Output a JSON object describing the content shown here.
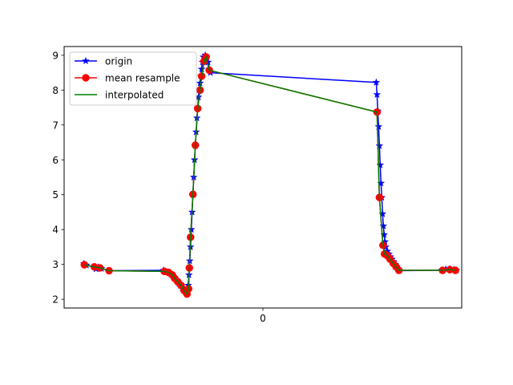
{
  "chart_data": {
    "type": "line",
    "title": "",
    "xlabel": "",
    "ylabel": "",
    "xlim": [
      0,
      100
    ],
    "ylim": [
      1.75,
      9.25
    ],
    "x_ticks": [
      {
        "value": 50,
        "label": "0"
      }
    ],
    "y_ticks": [
      2,
      3,
      4,
      5,
      6,
      7,
      8,
      9
    ],
    "grid": false,
    "legend_position": "upper-left",
    "series": [
      {
        "name": "origin",
        "color": "#0000ff",
        "marker": "star",
        "points": [
          [
            5.0,
            3.02
          ],
          [
            5.6,
            2.98
          ],
          [
            7.5,
            2.93
          ],
          [
            8.0,
            2.87
          ],
          [
            8.6,
            2.92
          ],
          [
            9.4,
            2.88
          ],
          [
            11.3,
            2.82
          ],
          [
            25.0,
            2.83
          ],
          [
            25.5,
            2.8
          ],
          [
            26.0,
            2.78
          ],
          [
            26.4,
            2.76
          ],
          [
            26.9,
            2.72
          ],
          [
            27.3,
            2.68
          ],
          [
            27.7,
            2.63
          ],
          [
            28.1,
            2.57
          ],
          [
            28.5,
            2.51
          ],
          [
            28.9,
            2.45
          ],
          [
            29.3,
            2.39
          ],
          [
            29.7,
            2.33
          ],
          [
            30.1,
            2.27
          ],
          [
            30.5,
            2.21
          ],
          [
            30.9,
            2.16
          ],
          [
            31.2,
            2.4
          ],
          [
            31.4,
            2.7
          ],
          [
            31.6,
            3.1
          ],
          [
            31.8,
            3.5
          ],
          [
            32.0,
            4.0
          ],
          [
            32.2,
            4.5
          ],
          [
            32.4,
            5.0
          ],
          [
            32.6,
            5.5
          ],
          [
            32.8,
            6.0
          ],
          [
            33.0,
            6.4
          ],
          [
            33.2,
            6.8
          ],
          [
            33.4,
            7.2
          ],
          [
            33.6,
            7.5
          ],
          [
            33.8,
            7.8
          ],
          [
            34.0,
            8.0
          ],
          [
            34.2,
            8.2
          ],
          [
            34.4,
            8.4
          ],
          [
            34.6,
            8.6
          ],
          [
            34.8,
            8.8
          ],
          [
            35.0,
            8.95
          ],
          [
            35.5,
            9.0
          ],
          [
            35.9,
            8.95
          ],
          [
            36.2,
            8.8
          ],
          [
            36.5,
            8.6
          ],
          [
            36.8,
            8.5
          ],
          [
            78.5,
            8.22
          ],
          [
            78.7,
            7.87
          ],
          [
            78.9,
            7.4
          ],
          [
            79.1,
            6.95
          ],
          [
            79.3,
            6.4
          ],
          [
            79.5,
            5.85
          ],
          [
            79.7,
            5.33
          ],
          [
            79.9,
            4.92
          ],
          [
            80.1,
            4.45
          ],
          [
            80.3,
            4.1
          ],
          [
            80.5,
            3.85
          ],
          [
            80.7,
            3.65
          ],
          [
            80.9,
            3.5
          ],
          [
            81.3,
            3.38
          ],
          [
            81.7,
            3.3
          ],
          [
            82.1,
            3.22
          ],
          [
            82.5,
            3.15
          ],
          [
            82.9,
            3.08
          ],
          [
            83.3,
            3.0
          ],
          [
            83.7,
            2.93
          ],
          [
            84.0,
            2.87
          ],
          [
            84.3,
            2.82
          ],
          [
            95.0,
            2.83
          ],
          [
            96.0,
            2.86
          ],
          [
            97.0,
            2.87
          ],
          [
            98.0,
            2.85
          ],
          [
            98.7,
            2.83
          ]
        ]
      },
      {
        "name": "mean resample",
        "color": "#ff0000",
        "marker": "circle",
        "points": [
          [
            5.1,
            2.99
          ],
          [
            7.6,
            2.93
          ],
          [
            9.0,
            2.9
          ],
          [
            11.3,
            2.82
          ],
          [
            25.2,
            2.8
          ],
          [
            26.3,
            2.77
          ],
          [
            27.2,
            2.7
          ],
          [
            27.8,
            2.6
          ],
          [
            28.6,
            2.5
          ],
          [
            29.4,
            2.4
          ],
          [
            30.2,
            2.25
          ],
          [
            30.9,
            2.15
          ],
          [
            31.3,
            2.3
          ],
          [
            31.5,
            2.9
          ],
          [
            31.8,
            3.78
          ],
          [
            32.4,
            5.01
          ],
          [
            33.0,
            6.42
          ],
          [
            33.6,
            7.47
          ],
          [
            34.2,
            8.0
          ],
          [
            34.6,
            8.4
          ],
          [
            35.2,
            8.83
          ],
          [
            35.7,
            8.95
          ],
          [
            36.5,
            8.57
          ],
          [
            78.7,
            7.37
          ],
          [
            79.3,
            4.92
          ],
          [
            80.2,
            3.55
          ],
          [
            80.6,
            3.3
          ],
          [
            81.3,
            3.25
          ],
          [
            82.0,
            3.15
          ],
          [
            82.8,
            3.03
          ],
          [
            83.5,
            2.93
          ],
          [
            84.2,
            2.83
          ],
          [
            95.2,
            2.83
          ],
          [
            97.0,
            2.85
          ],
          [
            98.4,
            2.83
          ]
        ]
      },
      {
        "name": "interpolated",
        "color": "#008000",
        "marker": "none",
        "points": [
          [
            5.1,
            2.99
          ],
          [
            7.6,
            2.93
          ],
          [
            9.0,
            2.9
          ],
          [
            11.3,
            2.82
          ],
          [
            25.2,
            2.8
          ],
          [
            26.3,
            2.77
          ],
          [
            27.2,
            2.7
          ],
          [
            27.8,
            2.6
          ],
          [
            28.6,
            2.5
          ],
          [
            29.4,
            2.4
          ],
          [
            30.2,
            2.25
          ],
          [
            30.9,
            2.15
          ],
          [
            31.3,
            2.3
          ],
          [
            31.5,
            2.9
          ],
          [
            31.8,
            3.78
          ],
          [
            32.4,
            5.01
          ],
          [
            33.0,
            6.42
          ],
          [
            33.6,
            7.47
          ],
          [
            34.2,
            8.0
          ],
          [
            34.6,
            8.4
          ],
          [
            35.2,
            8.83
          ],
          [
            35.7,
            8.95
          ],
          [
            36.5,
            8.57
          ],
          [
            78.7,
            7.37
          ],
          [
            79.3,
            4.92
          ],
          [
            80.2,
            3.55
          ],
          [
            80.6,
            3.3
          ],
          [
            81.3,
            3.25
          ],
          [
            82.0,
            3.15
          ],
          [
            82.8,
            3.03
          ],
          [
            83.5,
            2.93
          ],
          [
            84.2,
            2.83
          ],
          [
            95.2,
            2.83
          ],
          [
            97.0,
            2.85
          ],
          [
            98.4,
            2.83
          ]
        ]
      }
    ]
  }
}
